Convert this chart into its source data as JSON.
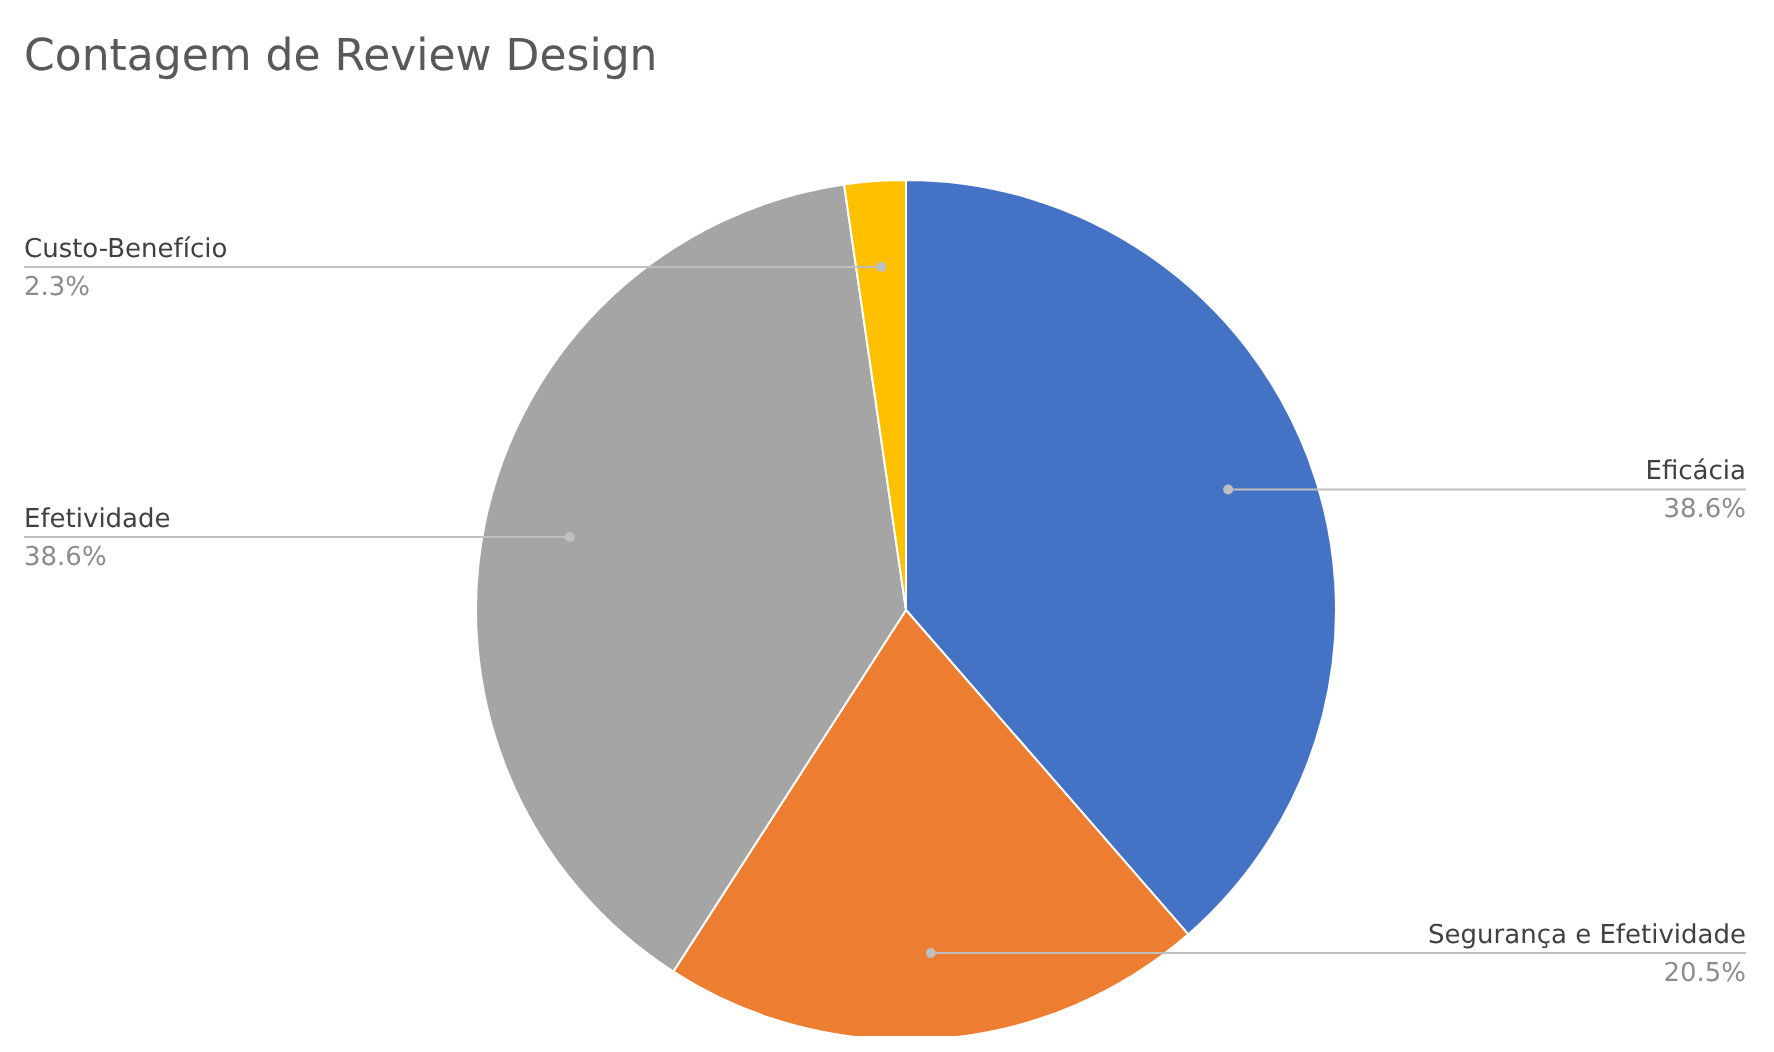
{
  "chart_data": {
    "type": "pie",
    "title": "Contagem de Review Design",
    "categories": [
      "Eficácia",
      "Segurança e Efetividade",
      "Efetividade",
      "Custo-Benefício"
    ],
    "values": [
      38.6,
      20.5,
      38.6,
      2.3
    ],
    "colors": [
      "#4472c4",
      "#ed7d31",
      "#a5a5a5",
      "#ffc000"
    ],
    "value_labels": [
      "38.6%",
      "20.5%",
      "38.6%",
      "2.3%"
    ]
  }
}
